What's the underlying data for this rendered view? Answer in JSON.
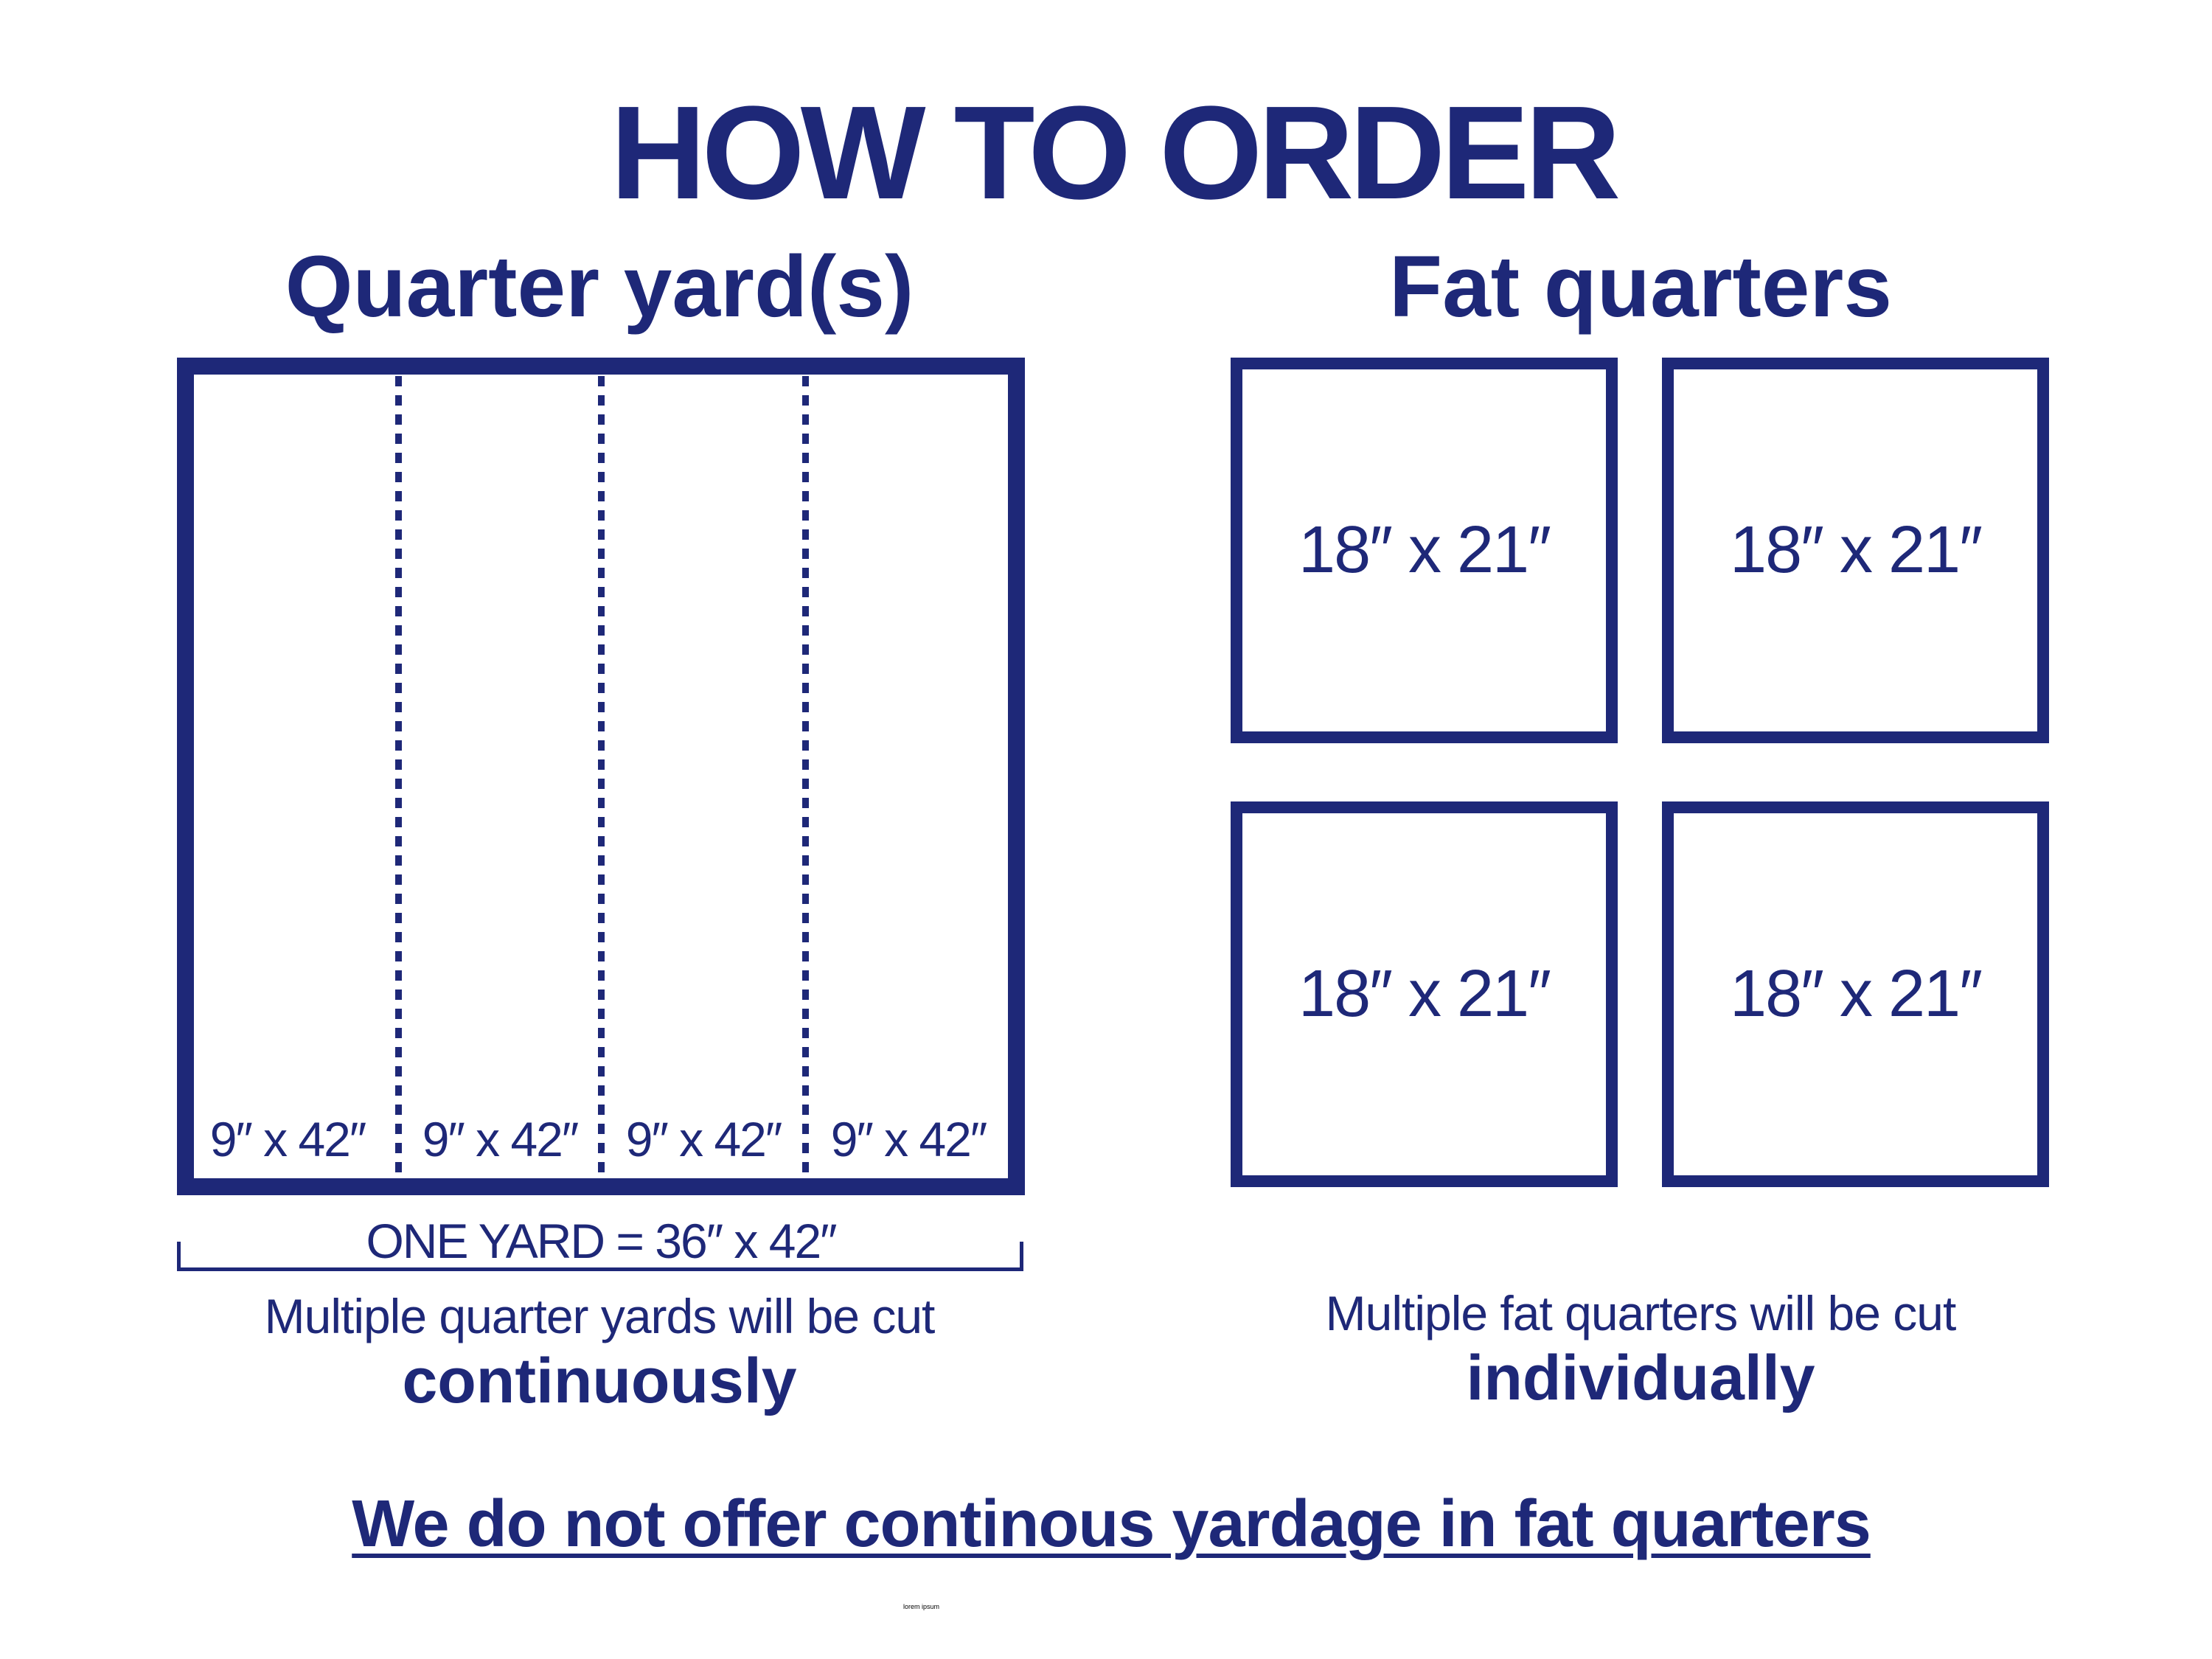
{
  "title": "HOW TO ORDER",
  "quarter_yards": {
    "heading": "Quarter yard(s)",
    "strips": [
      "9″ x 42″",
      "9″ x 42″",
      "9″ x 42″",
      "9″ x 42″"
    ],
    "total": "ONE YARD = 36″ x 42″",
    "note": "Multiple quarter yards will be cut",
    "emphasis": "continuously"
  },
  "fat_quarters": {
    "heading": "Fat quarters",
    "pieces": [
      "18″ x 21″",
      "18″ x 21″",
      "18″ x 21″",
      "18″ x 21″"
    ],
    "note": "Multiple fat quarters will be cut",
    "emphasis": "individually"
  },
  "footer": "We do not offer continous yardage in fat quarters",
  "artifact_text": "lorem ipsum",
  "colors": {
    "brand": "#1e2878"
  }
}
